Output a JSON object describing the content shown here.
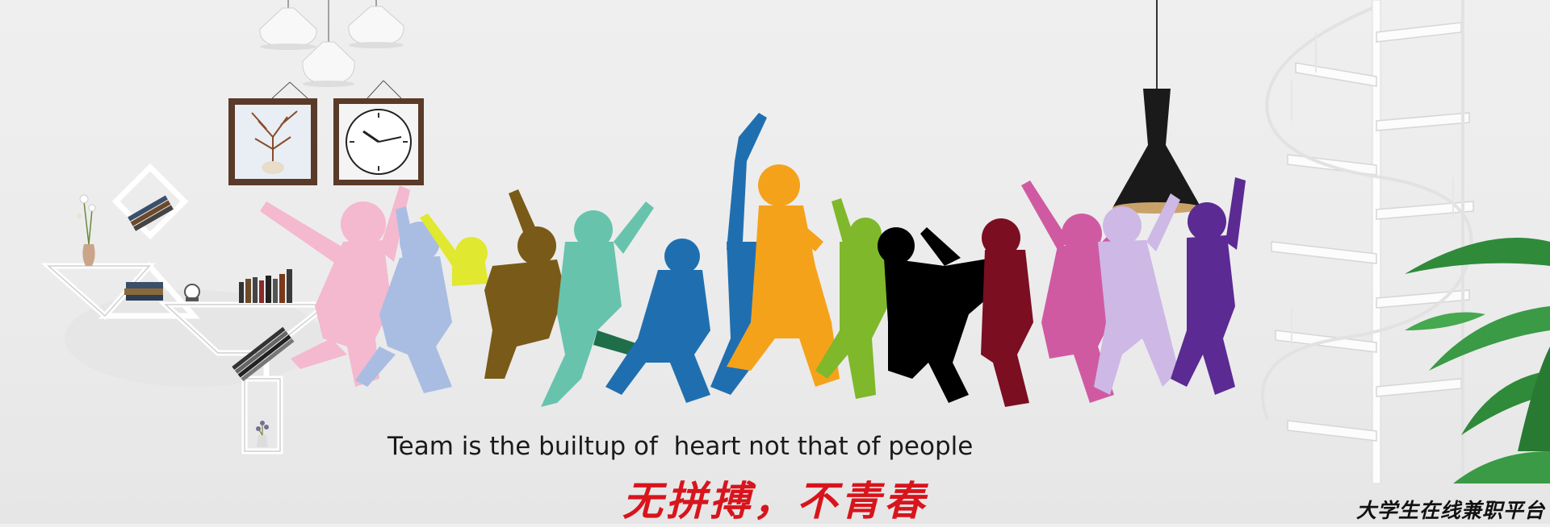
{
  "banner": {
    "slogan_en": "Team is the builtup of  heart not that of people",
    "slogan_cn": "无拼搏，不青春",
    "signature": "大学生在线兼职平台"
  },
  "colors": {
    "background": "#ececec",
    "slogan_cn": "#d8141c",
    "silhouettes": [
      "#f4b8cf",
      "#a9bde3",
      "#e0e830",
      "#7a5a18",
      "#68c3ad",
      "#1f6fb0",
      "#f5a21b",
      "#7fb82a",
      "#000000",
      "#7c0e22",
      "#d05aa2",
      "#cdb8e6",
      "#5b2a93"
    ]
  },
  "icons": [
    "pendant-lamp-icon",
    "picture-frame-icon",
    "wall-clock-icon",
    "shelf-icon",
    "spiral-staircase-icon",
    "plant-icon",
    "black-lamp-icon"
  ]
}
